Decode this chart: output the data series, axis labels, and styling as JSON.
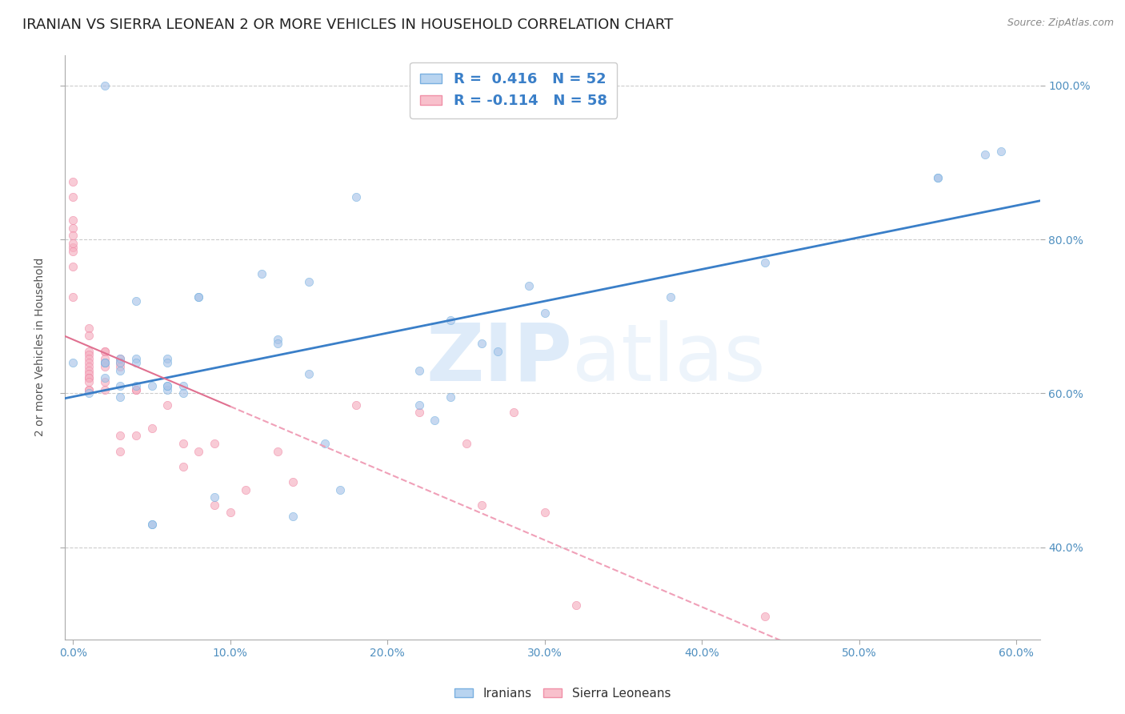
{
  "title": "IRANIAN VS SIERRA LEONEAN 2 OR MORE VEHICLES IN HOUSEHOLD CORRELATION CHART",
  "source": "Source: ZipAtlas.com",
  "ylabel": "2 or more Vehicles in Household",
  "watermark_zip": "ZIP",
  "watermark_atlas": "atlas",
  "xmin": -0.005,
  "xmax": 0.615,
  "ymin": 0.28,
  "ymax": 1.04,
  "iranian_color": "#aac4e8",
  "sierra_color": "#f5afc0",
  "iranian_edge_color": "#6aaee0",
  "sierra_edge_color": "#f080a0",
  "iranian_line_color": "#3a7fc8",
  "sierra_line_color_solid": "#e07090",
  "sierra_line_color_dash": "#f0a0b8",
  "R_iranian": 0.416,
  "N_iranian": 52,
  "R_sierra": -0.114,
  "N_sierra": 58,
  "legend_label_iranian": "Iranians",
  "legend_label_sierra": "Sierra Leoneans",
  "legend_color_iranian": "#b8d4f0",
  "legend_color_sierra": "#f8c0cc",
  "legend_edge_iranian": "#7ab0e0",
  "legend_edge_sierra": "#f090a8",
  "x_tick_vals": [
    0.0,
    0.1,
    0.2,
    0.3,
    0.4,
    0.5,
    0.6
  ],
  "y_tick_vals": [
    0.4,
    0.6,
    0.8,
    1.0
  ],
  "y_tick_labels": [
    "40.0%",
    "60.0%",
    "80.0%",
    "100.0%"
  ],
  "background_color": "#ffffff",
  "grid_color": "#cccccc",
  "title_fontsize": 13,
  "axis_label_fontsize": 10,
  "tick_fontsize": 10,
  "marker_size": 55,
  "marker_alpha": 0.65,
  "iranian_x": [
    0.02,
    0.18,
    0.29,
    0.44,
    0.55,
    0.55,
    0.58,
    0.04,
    0.08,
    0.15,
    0.08,
    0.06,
    0.06,
    0.04,
    0.04,
    0.03,
    0.03,
    0.03,
    0.02,
    0.13,
    0.12,
    0.13,
    0.02,
    0.24,
    0.26,
    0.22,
    0.38,
    0.59,
    0.03,
    0.01,
    0.15,
    0.16,
    0.17,
    0.14,
    0.22,
    0.23,
    0.24,
    0.27,
    0.3,
    0.09,
    0.05,
    0.07,
    0.06,
    0.06,
    0.05,
    0.05,
    0.07,
    0.06,
    0.04,
    0.03,
    0.02,
    0.0
  ],
  "iranian_y": [
    1.0,
    0.855,
    0.74,
    0.77,
    0.88,
    0.88,
    0.91,
    0.72,
    0.725,
    0.745,
    0.725,
    0.645,
    0.64,
    0.645,
    0.64,
    0.645,
    0.64,
    0.63,
    0.64,
    0.67,
    0.755,
    0.665,
    0.62,
    0.695,
    0.665,
    0.63,
    0.725,
    0.915,
    0.595,
    0.6,
    0.625,
    0.535,
    0.475,
    0.44,
    0.585,
    0.565,
    0.595,
    0.655,
    0.705,
    0.465,
    0.43,
    0.61,
    0.605,
    0.61,
    0.61,
    0.43,
    0.6,
    0.61,
    0.61,
    0.61,
    0.64,
    0.64
  ],
  "sierra_x": [
    0.0,
    0.0,
    0.0,
    0.0,
    0.0,
    0.0,
    0.0,
    0.0,
    0.0,
    0.0,
    0.01,
    0.01,
    0.01,
    0.01,
    0.01,
    0.01,
    0.01,
    0.01,
    0.01,
    0.01,
    0.01,
    0.01,
    0.01,
    0.01,
    0.02,
    0.02,
    0.02,
    0.02,
    0.02,
    0.02,
    0.02,
    0.03,
    0.03,
    0.03,
    0.03,
    0.03,
    0.04,
    0.04,
    0.04,
    0.05,
    0.06,
    0.07,
    0.07,
    0.08,
    0.09,
    0.09,
    0.1,
    0.11,
    0.13,
    0.14,
    0.18,
    0.22,
    0.25,
    0.26,
    0.28,
    0.3,
    0.32,
    0.44
  ],
  "sierra_y": [
    0.875,
    0.855,
    0.825,
    0.815,
    0.805,
    0.79,
    0.795,
    0.785,
    0.765,
    0.725,
    0.685,
    0.675,
    0.655,
    0.65,
    0.645,
    0.64,
    0.635,
    0.63,
    0.625,
    0.62,
    0.62,
    0.615,
    0.605,
    0.605,
    0.655,
    0.655,
    0.645,
    0.64,
    0.635,
    0.615,
    0.605,
    0.645,
    0.64,
    0.635,
    0.545,
    0.525,
    0.605,
    0.605,
    0.545,
    0.555,
    0.585,
    0.535,
    0.505,
    0.525,
    0.535,
    0.455,
    0.445,
    0.475,
    0.525,
    0.485,
    0.585,
    0.575,
    0.535,
    0.455,
    0.575,
    0.445,
    0.325,
    0.31
  ]
}
